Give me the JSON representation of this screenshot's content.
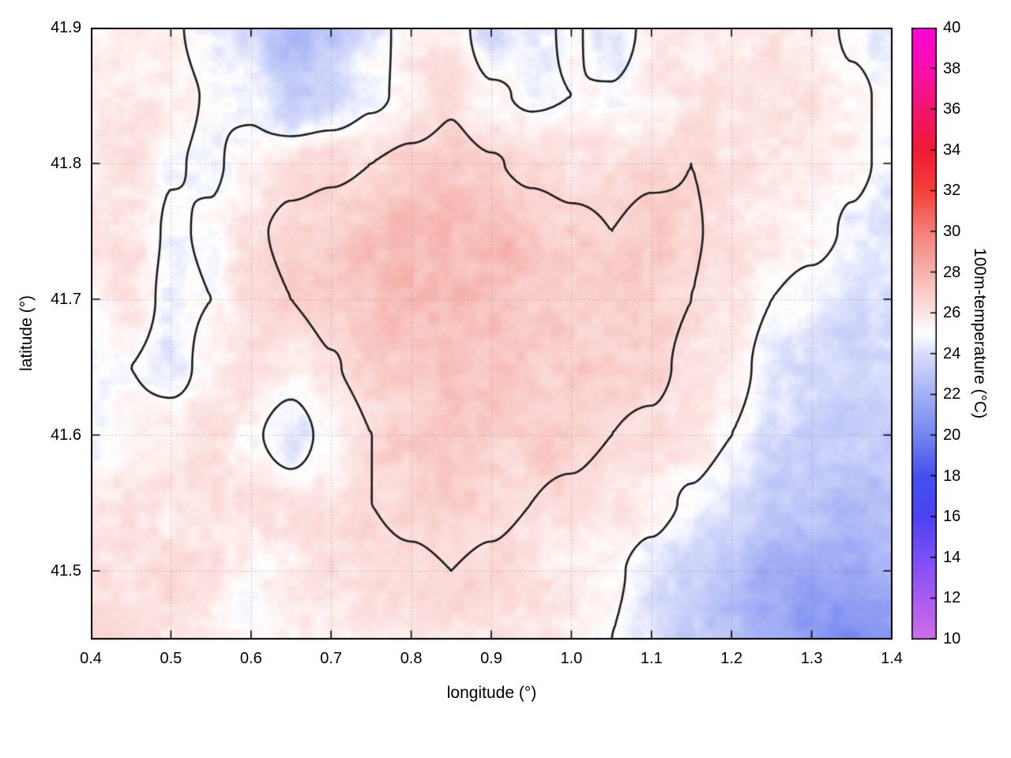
{
  "figure": {
    "title": "",
    "background_color": "#ffffff"
  },
  "chart_data": {
    "type": "heatmap",
    "title": "",
    "xlabel": "longitude (°)",
    "ylabel": "latitude (°)",
    "colorbar_label": "100m-temperature (°C)",
    "x_range": [
      0.4,
      1.4
    ],
    "y_range": [
      41.45,
      41.9
    ],
    "colorbar_range": [
      10,
      40
    ],
    "grid_lines": "dotted",
    "colorbar_position": "right",
    "contour_levels": [
      25,
      26.5
    ],
    "contour_color": "#1c1c1c",
    "x_ticks": [
      {
        "value": 0.4,
        "label": "0.4"
      },
      {
        "value": 0.5,
        "label": "0.5"
      },
      {
        "value": 0.6,
        "label": "0.6"
      },
      {
        "value": 0.7,
        "label": "0.7"
      },
      {
        "value": 0.8,
        "label": "0.8"
      },
      {
        "value": 0.9,
        "label": "0.9"
      },
      {
        "value": 1.0,
        "label": "1.0"
      },
      {
        "value": 1.1,
        "label": "1.1"
      },
      {
        "value": 1.2,
        "label": "1.2"
      },
      {
        "value": 1.3,
        "label": "1.3"
      },
      {
        "value": 1.4,
        "label": "1.4"
      }
    ],
    "y_ticks": [
      {
        "value": 41.5,
        "label": "41.5"
      },
      {
        "value": 41.6,
        "label": "41.6"
      },
      {
        "value": 41.7,
        "label": "41.7"
      },
      {
        "value": 41.8,
        "label": "41.8"
      },
      {
        "value": 41.9,
        "label": "41.9"
      }
    ],
    "colorbar_ticks": [
      {
        "value": 10,
        "label": "10"
      },
      {
        "value": 12,
        "label": "12"
      },
      {
        "value": 14,
        "label": "14"
      },
      {
        "value": 16,
        "label": "16"
      },
      {
        "value": 18,
        "label": "18"
      },
      {
        "value": 20,
        "label": "20"
      },
      {
        "value": 22,
        "label": "22"
      },
      {
        "value": 24,
        "label": "24"
      },
      {
        "value": 26,
        "label": "26"
      },
      {
        "value": 28,
        "label": "28"
      },
      {
        "value": 30,
        "label": "30"
      },
      {
        "value": 32,
        "label": "32"
      },
      {
        "value": 34,
        "label": "34"
      },
      {
        "value": 36,
        "label": "36"
      },
      {
        "value": 38,
        "label": "38"
      },
      {
        "value": 40,
        "label": "40"
      }
    ],
    "colormap": [
      [
        10,
        "#ce6fe8"
      ],
      [
        12,
        "#a75cf0"
      ],
      [
        14,
        "#7b4ef4"
      ],
      [
        16,
        "#4b42f2"
      ],
      [
        18,
        "#4450ee"
      ],
      [
        20,
        "#7585f0"
      ],
      [
        22,
        "#a3b0f5"
      ],
      [
        24,
        "#d7ddfb"
      ],
      [
        25,
        "#ffffff"
      ],
      [
        26,
        "#fce4e2"
      ],
      [
        27,
        "#f9cdc9"
      ],
      [
        28,
        "#f6b3ae"
      ],
      [
        30,
        "#f57f79"
      ],
      [
        32,
        "#f4403a"
      ],
      [
        34,
        "#ef1a35"
      ],
      [
        36,
        "#f2156e"
      ],
      [
        38,
        "#fa0fae"
      ],
      [
        40,
        "#ff05d8"
      ]
    ],
    "grid": {
      "unit": "°C",
      "x": [
        0.4,
        0.45,
        0.5,
        0.55,
        0.6,
        0.65,
        0.7,
        0.75,
        0.8,
        0.85,
        0.9,
        0.95,
        1.0,
        1.05,
        1.1,
        1.15,
        1.2,
        1.25,
        1.3,
        1.35,
        1.4
      ],
      "y": [
        41.9,
        41.85,
        41.8,
        41.75,
        41.7,
        41.65,
        41.6,
        41.55,
        41.5,
        41.45
      ],
      "values": [
        [
          25.6,
          25.6,
          25.2,
          24.4,
          23.6,
          22.4,
          22.8,
          24.4,
          25.6,
          26.0,
          23.8,
          24.6,
          25.2,
          24.2,
          25.4,
          25.8,
          25.9,
          25.7,
          25.6,
          24.8,
          24.4
        ],
        [
          25.7,
          25.9,
          25.4,
          24.9,
          24.6,
          23.0,
          23.6,
          24.7,
          25.4,
          26.3,
          25.2,
          24.8,
          25.0,
          25.1,
          25.6,
          26.0,
          26.2,
          26.0,
          25.8,
          25.2,
          24.8
        ],
        [
          26.0,
          26.2,
          25.1,
          24.8,
          25.6,
          26.1,
          26.3,
          26.5,
          26.8,
          27.0,
          26.6,
          26.2,
          26.0,
          26.1,
          26.3,
          26.5,
          26.1,
          25.7,
          25.8,
          25.3,
          24.7
        ],
        [
          25.8,
          26.0,
          24.8,
          25.2,
          26.3,
          26.8,
          27.0,
          27.2,
          27.5,
          27.9,
          27.7,
          27.2,
          26.8,
          26.5,
          26.8,
          26.6,
          26.1,
          25.8,
          25.5,
          24.8,
          24.2
        ],
        [
          25.5,
          25.8,
          24.6,
          25.0,
          26.0,
          26.5,
          27.0,
          27.3,
          27.5,
          27.7,
          27.5,
          27.1,
          27.0,
          26.8,
          27.0,
          26.5,
          25.8,
          25.0,
          24.5,
          24.0,
          24.4
        ],
        [
          25.2,
          25.0,
          24.4,
          25.5,
          26.1,
          25.6,
          26.4,
          27.0,
          27.2,
          27.5,
          27.3,
          27.0,
          27.0,
          26.8,
          26.8,
          26.2,
          25.5,
          24.5,
          23.8,
          23.5,
          23.9
        ],
        [
          25.0,
          25.5,
          25.8,
          26.0,
          25.2,
          24.3,
          25.5,
          26.5,
          26.8,
          27.2,
          27.0,
          26.8,
          26.8,
          26.5,
          26.3,
          25.8,
          25.0,
          24.2,
          23.5,
          23.2,
          23.5
        ],
        [
          25.8,
          26.0,
          26.0,
          26.2,
          26.0,
          25.7,
          26.0,
          26.5,
          26.8,
          27.0,
          26.8,
          26.5,
          26.3,
          26.0,
          25.5,
          24.8,
          24.0,
          23.2,
          22.8,
          22.5,
          22.8
        ],
        [
          26.0,
          26.0,
          26.2,
          25.8,
          25.2,
          25.7,
          26.0,
          26.2,
          26.3,
          26.5,
          26.3,
          26.0,
          25.8,
          25.2,
          24.5,
          23.5,
          22.8,
          21.8,
          21.8,
          21.5,
          22.0
        ],
        [
          26.2,
          26.2,
          26.0,
          25.8,
          25.2,
          25.6,
          25.3,
          25.8,
          26.0,
          26.2,
          26.0,
          25.8,
          25.5,
          25.0,
          24.2,
          23.2,
          22.5,
          22.0,
          21.0,
          20.5,
          20.8
        ]
      ]
    }
  }
}
